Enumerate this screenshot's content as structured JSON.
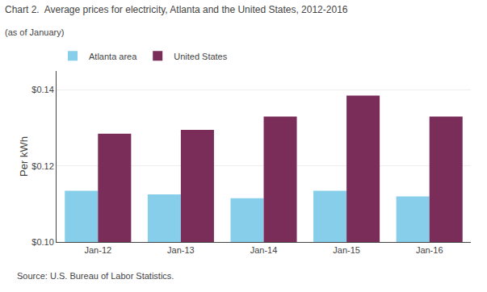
{
  "chart_data": {
    "type": "bar",
    "title": "Chart 2.  Average prices for electricity, Atlanta and the United States, 2012-2016",
    "subtitle": "(as of January)",
    "ylabel": "Per kWh",
    "annotations": [
      "Source: U.S. Bureau of Labor Statistics."
    ],
    "categories": [
      "Jan-12",
      "Jan-13",
      "Jan-14",
      "Jan-15",
      "Jan-16"
    ],
    "series": [
      {
        "name": "Atlanta area",
        "color": "#87CEEB",
        "values": [
          0.1135,
          0.1125,
          0.1115,
          0.1135,
          0.112
        ]
      },
      {
        "name": "United States",
        "color": "#7B2D5A",
        "values": [
          0.1285,
          0.1295,
          0.133,
          0.1385,
          0.133
        ]
      }
    ],
    "ylim": [
      0.1,
      0.145
    ],
    "yticks": [
      {
        "value": 0.1,
        "label": "$0.10"
      },
      {
        "value": 0.12,
        "label": "$0.12"
      },
      {
        "value": 0.14,
        "label": "$0.14"
      }
    ],
    "grid": true,
    "legend": "upper left"
  }
}
